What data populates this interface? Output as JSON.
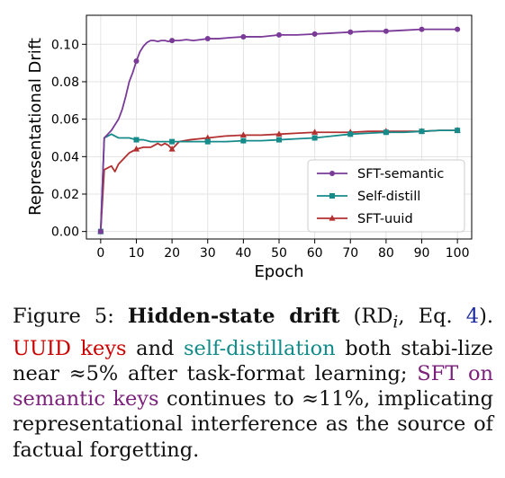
{
  "chart_data": {
    "type": "line",
    "xlabel": "Epoch",
    "ylabel": "Representational Drift",
    "xlim": [
      -4,
      104
    ],
    "ylim": [
      -0.004,
      0.1155
    ],
    "xticks": [
      0,
      10,
      20,
      30,
      40,
      50,
      60,
      70,
      80,
      90,
      100
    ],
    "yticks": [
      0.0,
      0.02,
      0.04,
      0.06,
      0.08,
      0.1
    ],
    "ytick_labels": [
      "0.00",
      "0.02",
      "0.04",
      "0.06",
      "0.08",
      "0.10"
    ],
    "grid": true,
    "legend_position": "lower-right",
    "series": [
      {
        "name": "SFT-semantic",
        "color": "#7a3b98",
        "marker": "circle",
        "x": [
          0,
          1,
          2,
          3,
          4,
          5,
          6,
          7,
          8,
          9,
          10,
          11,
          12,
          13,
          14,
          15,
          16,
          17,
          18,
          19,
          20,
          22,
          24,
          26,
          28,
          30,
          33,
          36,
          40,
          45,
          50,
          55,
          60,
          65,
          70,
          75,
          80,
          85,
          90,
          95,
          100
        ],
        "y": [
          0.0,
          0.05,
          0.052,
          0.054,
          0.057,
          0.06,
          0.065,
          0.072,
          0.08,
          0.085,
          0.091,
          0.096,
          0.099,
          0.101,
          0.102,
          0.102,
          0.1015,
          0.102,
          0.102,
          0.1015,
          0.102,
          0.102,
          0.1025,
          0.102,
          0.1025,
          0.103,
          0.103,
          0.1035,
          0.104,
          0.104,
          0.105,
          0.105,
          0.1055,
          0.106,
          0.1065,
          0.107,
          0.107,
          0.1075,
          0.108,
          0.108,
          0.108
        ],
        "marker_every": 10
      },
      {
        "name": "Self-distill",
        "color": "#178a8a",
        "marker": "square",
        "x": [
          0,
          1,
          2,
          3,
          4,
          5,
          6,
          8,
          10,
          12,
          14,
          16,
          18,
          20,
          22,
          25,
          30,
          35,
          40,
          45,
          50,
          55,
          60,
          65,
          70,
          75,
          80,
          85,
          90,
          95,
          100
        ],
        "y": [
          0.0,
          0.05,
          0.051,
          0.052,
          0.051,
          0.05,
          0.05,
          0.05,
          0.049,
          0.049,
          0.048,
          0.048,
          0.048,
          0.048,
          0.048,
          0.048,
          0.048,
          0.048,
          0.0485,
          0.0485,
          0.049,
          0.0495,
          0.05,
          0.051,
          0.052,
          0.0525,
          0.053,
          0.053,
          0.0535,
          0.054,
          0.054
        ],
        "marker_every": 10
      },
      {
        "name": "SFT-uuid",
        "color": "#b33030",
        "marker": "triangle",
        "x": [
          0,
          1,
          2,
          3,
          4,
          5,
          6,
          8,
          10,
          12,
          14,
          16,
          17,
          18,
          19,
          20,
          22,
          25,
          30,
          35,
          40,
          45,
          50,
          55,
          60,
          65,
          70,
          75,
          80,
          85,
          90,
          95,
          100
        ],
        "y": [
          0.0,
          0.033,
          0.034,
          0.035,
          0.032,
          0.036,
          0.038,
          0.042,
          0.044,
          0.045,
          0.045,
          0.047,
          0.046,
          0.047,
          0.046,
          0.044,
          0.048,
          0.049,
          0.05,
          0.051,
          0.0515,
          0.0515,
          0.052,
          0.0525,
          0.053,
          0.053,
          0.053,
          0.0535,
          0.0535,
          0.0535,
          0.0535,
          0.054,
          0.054
        ],
        "marker_every": 10
      }
    ]
  },
  "caption": {
    "figure_label": "Figure 5:",
    "bold_title": "Hidden-state drift",
    "paren_open": " (RD",
    "paren_sub": "i",
    "paren_mid": ", Eq. ",
    "eq_ref": "4",
    "paren_close": ").",
    "uuid_keys": "UUID keys",
    "and": " and ",
    "self_distillation": "self-distillation",
    "line_rest_1": " both stabi-lize near ≈5% after task-format learning; ",
    "sft_semantic": "SFT on semantic keys",
    "line_rest_2": " continues to ≈11%, implicating representational interference as the source of factual forgetting."
  }
}
